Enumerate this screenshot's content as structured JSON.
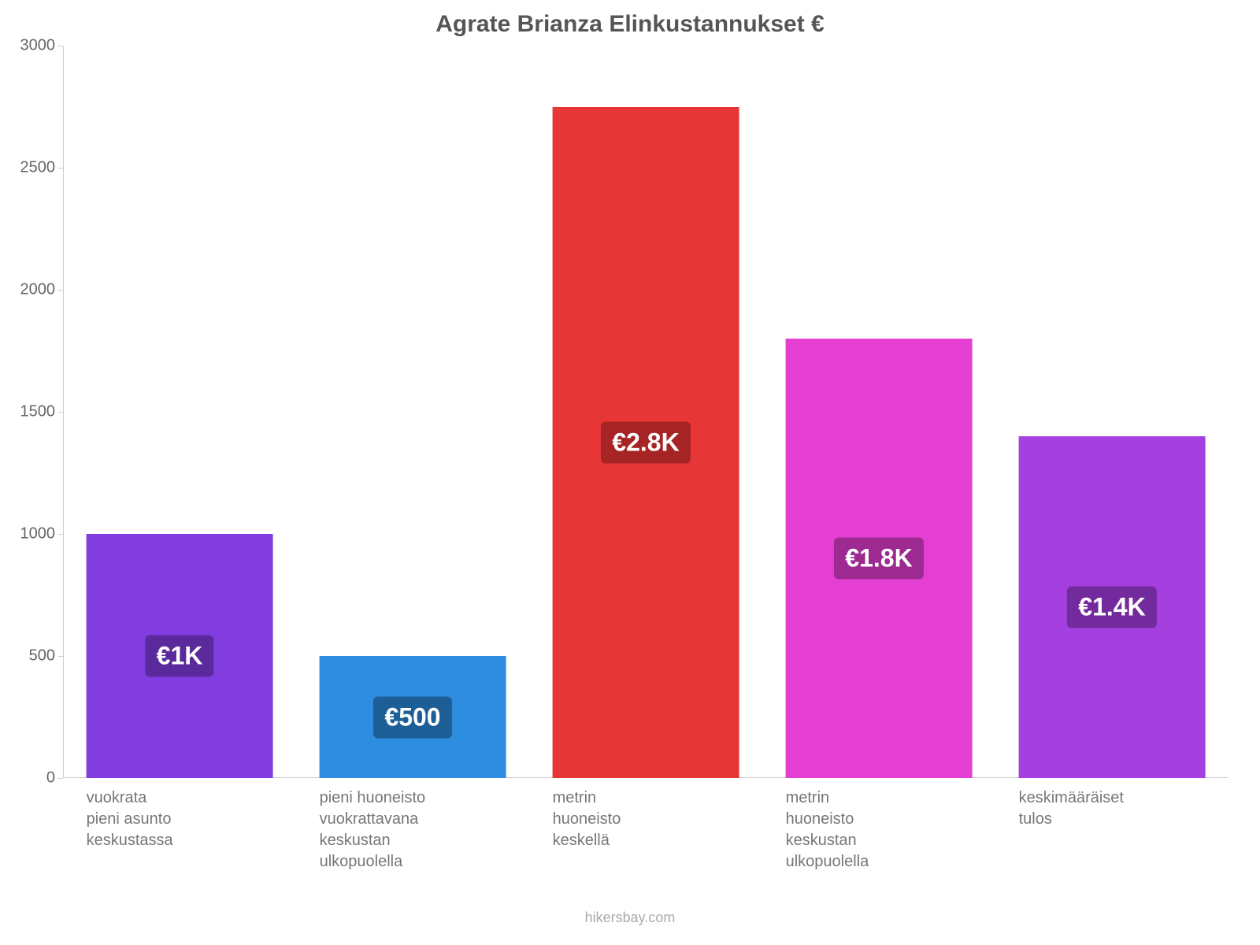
{
  "chart": {
    "type": "bar",
    "title": "Agrate Brianza Elinkustannukset €",
    "title_fontsize": 30,
    "title_color": "#555555",
    "background_color": "#ffffff",
    "axis_color": "#cccccc",
    "ylim": [
      0,
      3000
    ],
    "yticks": [
      0,
      500,
      1000,
      1500,
      2000,
      2500,
      3000
    ],
    "ytick_fontsize": 20,
    "ytick_color": "#666666",
    "label_fontsize": 20,
    "label_color": "#777777",
    "value_label_fontsize": 32,
    "value_label_text_color": "#ffffff",
    "bar_width_pct": 16,
    "categories": [
      "vuokrata\npieni asunto\nkeskustassa",
      "pieni huoneisto\nvuokrattavana\nkeskustan\nulkopuolella",
      "metrin\nhuoneisto\nkeskellä",
      "metrin\nhuoneisto\nkeskustan\nulkopuolella",
      "keskimääräiset\ntulos"
    ],
    "values": [
      1000,
      500,
      2750,
      1800,
      1400
    ],
    "value_labels": [
      "€1K",
      "€500",
      "€2.8K",
      "€1.8K",
      "€1.4K"
    ],
    "bar_colors": [
      "#823de0",
      "#2e8dde",
      "#e63636",
      "#e43fd2",
      "#a43fe0"
    ],
    "badge_bg_colors": [
      "#5a2a9c",
      "#1d5e96",
      "#a62424",
      "#9c2a90",
      "#722a9c"
    ],
    "source": "hikersbay.com"
  }
}
